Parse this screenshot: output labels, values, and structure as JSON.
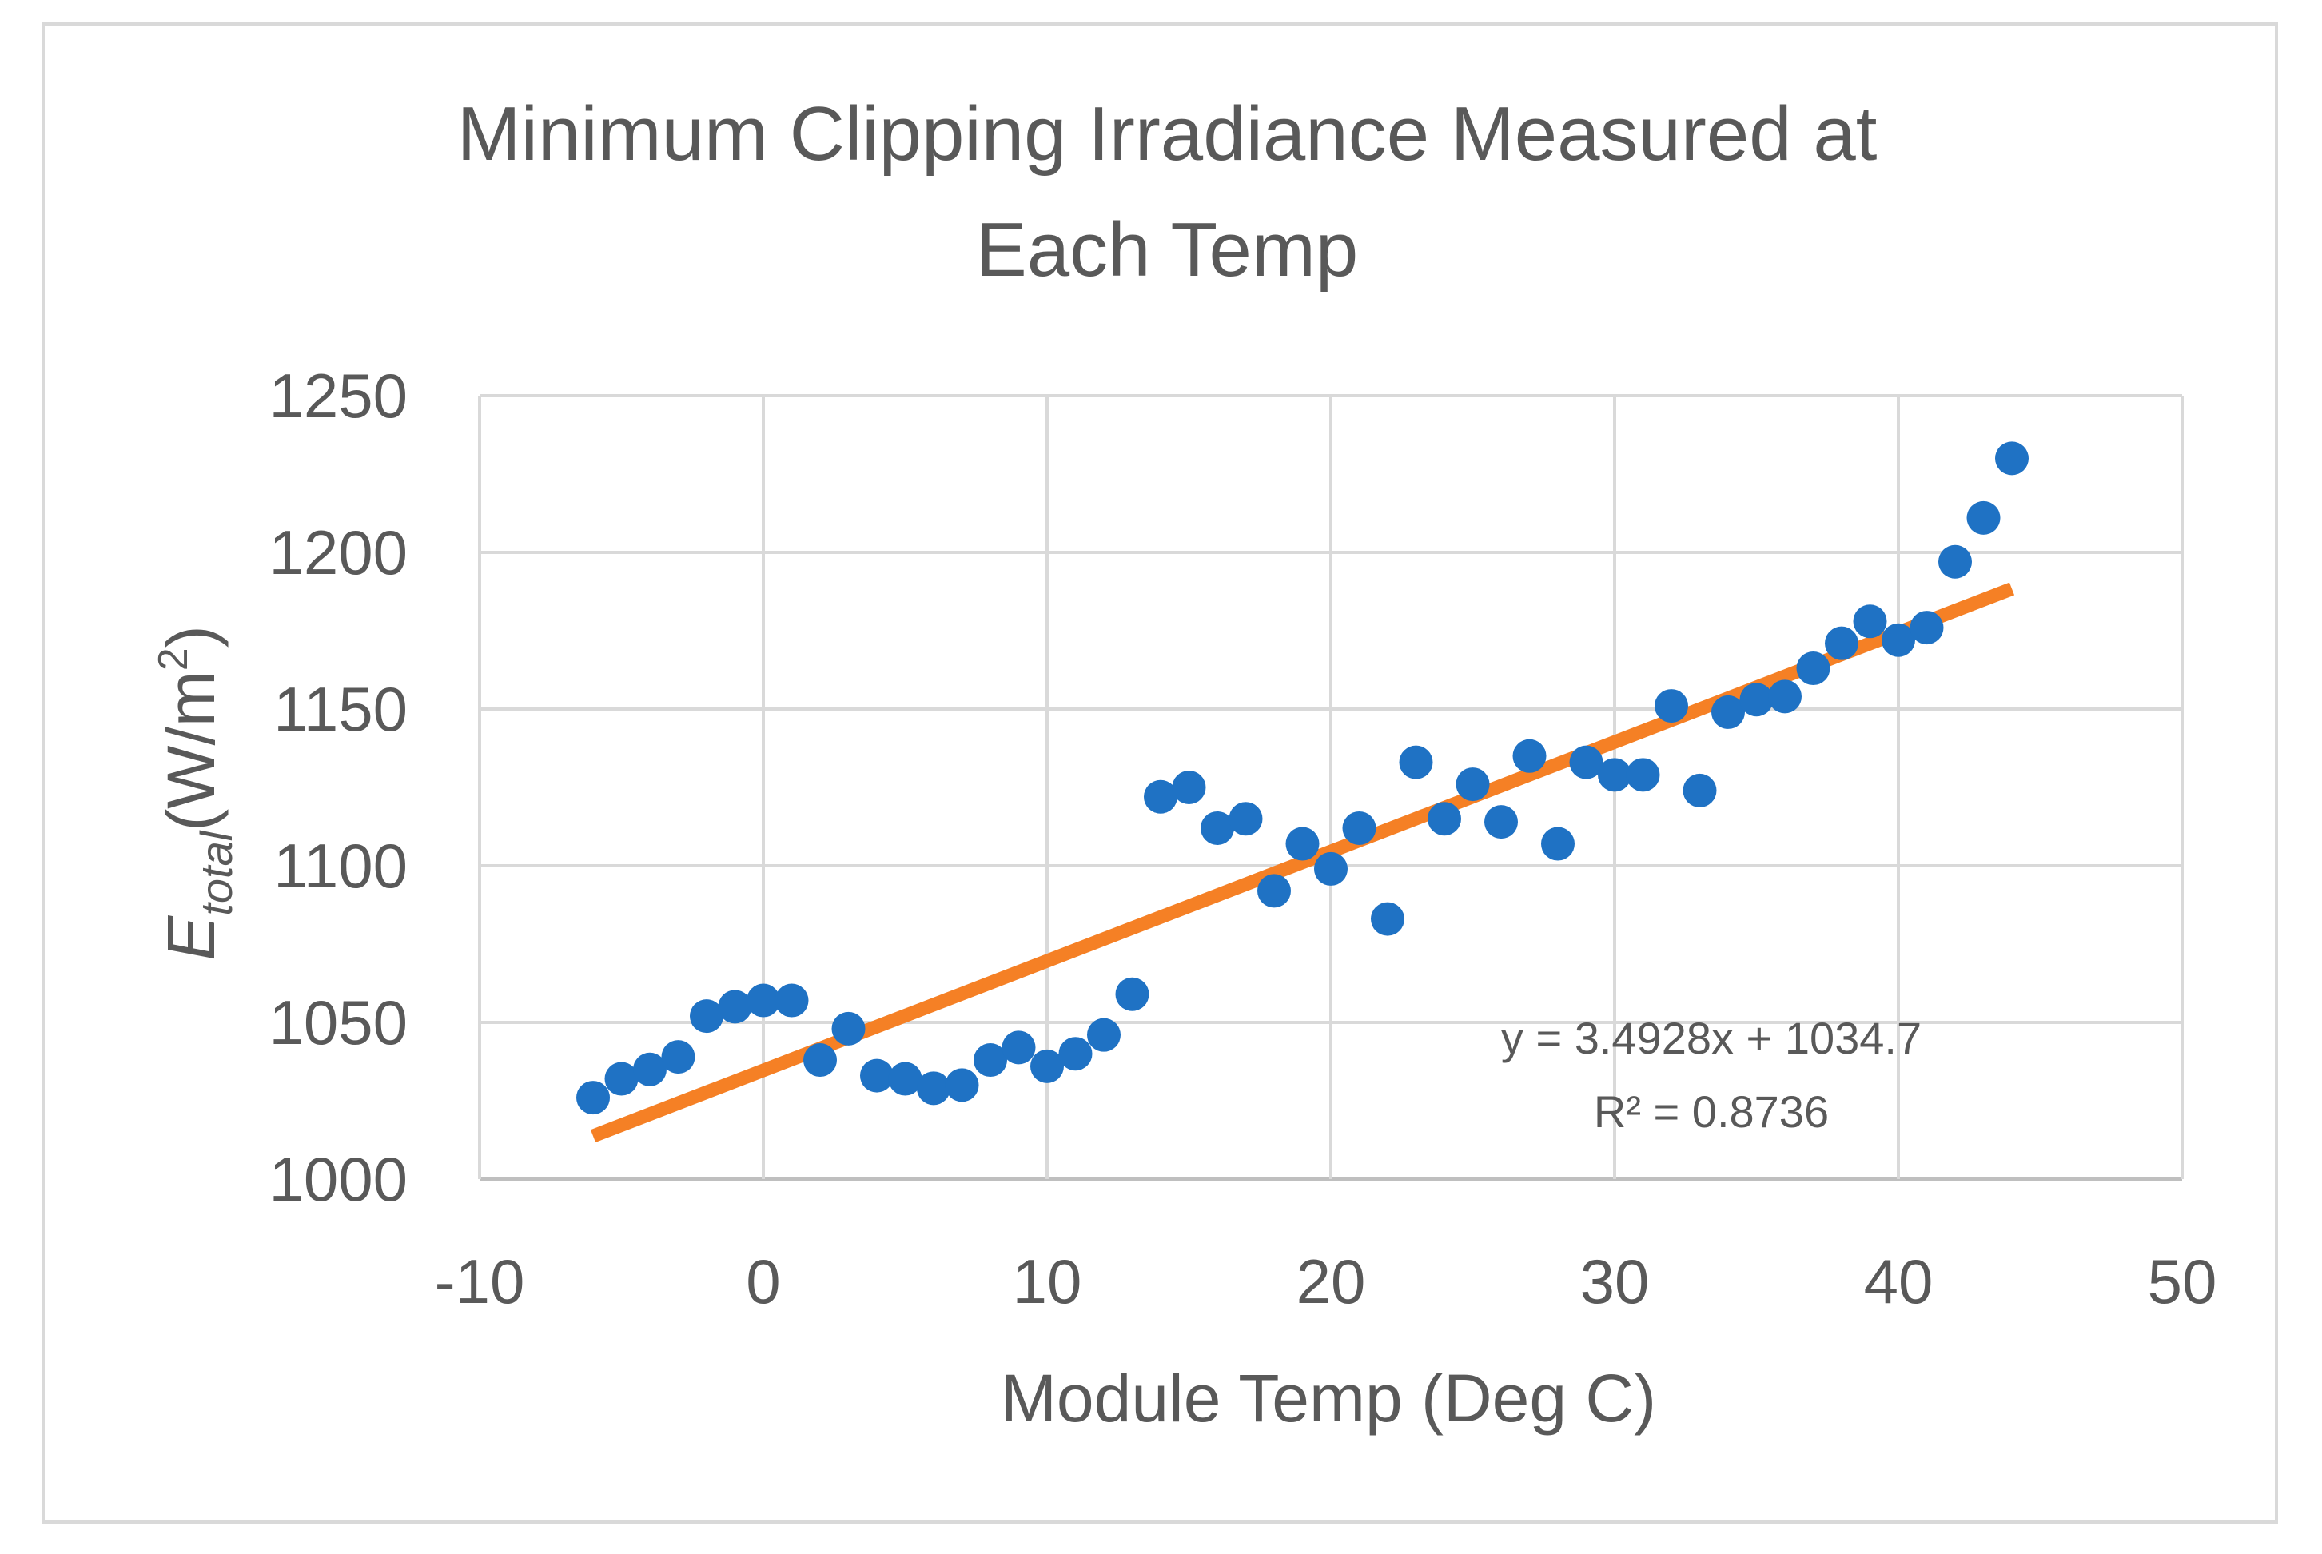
{
  "chart_data": {
    "type": "scatter",
    "title_lines": [
      "Minimum Clipping Irradiance Measured at",
      "Each Temp"
    ],
    "xlabel": "Module Temp (Deg C)",
    "ylabel": {
      "main": "E",
      "sub": "total",
      "unit_pre": "(W/m",
      "unit_sup": "2",
      "unit_post": ")"
    },
    "xlim": [
      -10,
      50
    ],
    "ylim": [
      1000,
      1250
    ],
    "xticks": [
      -10,
      0,
      10,
      20,
      30,
      40,
      50
    ],
    "yticks": [
      1000,
      1050,
      1100,
      1150,
      1200,
      1250
    ],
    "grid": true,
    "legend": "none",
    "marker_color": "#1f72c4",
    "trend_color": "#f58025",
    "series": [
      {
        "x": [
          -6,
          -5,
          -4,
          -3,
          -2,
          -1,
          0,
          1,
          2,
          3,
          4,
          5,
          6,
          7,
          8,
          9,
          10,
          11,
          12,
          13,
          14,
          15,
          16,
          17,
          18,
          19,
          20,
          21,
          22,
          23,
          24,
          25,
          26,
          27,
          28,
          29,
          30,
          31,
          32,
          33,
          34,
          35,
          36,
          37,
          38,
          39,
          40,
          41,
          42,
          43,
          44
        ],
        "y": [
          1026,
          1032,
          1035,
          1039,
          1052,
          1055,
          1057,
          1057,
          1038,
          1048,
          1033,
          1032,
          1029,
          1030,
          1038,
          1042,
          1036,
          1040,
          1046,
          1059,
          1122,
          1125,
          1112,
          1115,
          1092,
          1107,
          1099,
          1112,
          1083,
          1133,
          1115,
          1126,
          1114,
          1135,
          1107,
          1133,
          1129,
          1129,
          1151,
          1124,
          1149,
          1153,
          1154,
          1163,
          1171,
          1178,
          1172,
          1176,
          1197,
          1211,
          1230
        ]
      }
    ],
    "trendline": {
      "slope": 3.4928,
      "intercept": 1034.7,
      "x_range": [
        -6,
        44
      ],
      "equation": "y = 3.4928x + 1034.7",
      "r_squared": "R² = 0.8736"
    }
  }
}
